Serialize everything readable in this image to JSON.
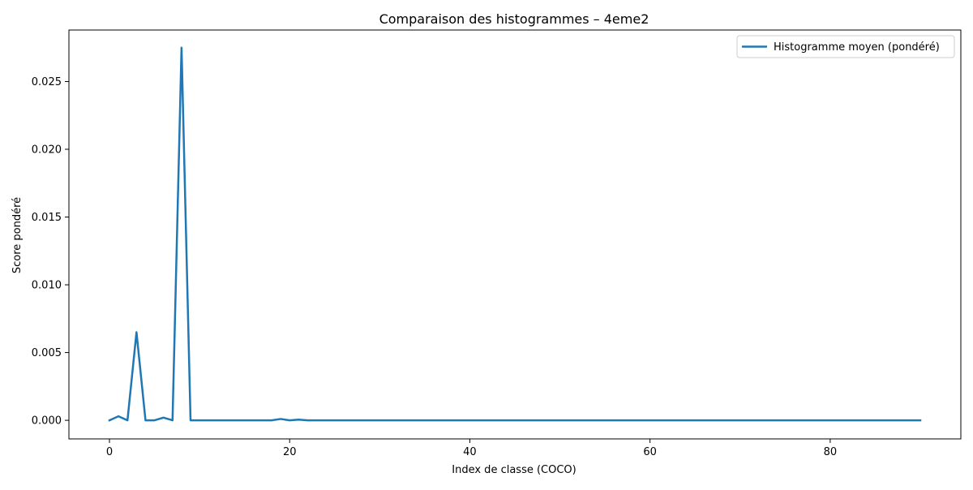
{
  "chart_data": {
    "type": "line",
    "title": "Comparaison des histogrammes – 4eme2",
    "xlabel": "Index de classe (COCO)",
    "ylabel": "Score pondéré",
    "xlim": [
      -4.5,
      94.5
    ],
    "ylim": [
      -0.00137,
      0.0288
    ],
    "xticks": [
      0,
      20,
      40,
      60,
      80
    ],
    "xtick_labels": [
      "0",
      "20",
      "40",
      "60",
      "80"
    ],
    "yticks": [
      0.0,
      0.005,
      0.01,
      0.015,
      0.02,
      0.025
    ],
    "ytick_labels": [
      "0.000",
      "0.005",
      "0.010",
      "0.015",
      "0.020",
      "0.025"
    ],
    "grid": false,
    "legend_position": "top-right",
    "series": [
      {
        "name": "Histogramme moyen (pondéré)",
        "color": "#1f77b4",
        "x": [
          0,
          1,
          2,
          3,
          4,
          5,
          6,
          7,
          8,
          9,
          10,
          11,
          12,
          13,
          14,
          15,
          16,
          17,
          18,
          19,
          20,
          21,
          22,
          23,
          24,
          25,
          26,
          27,
          28,
          29,
          30,
          31,
          32,
          33,
          34,
          35,
          36,
          37,
          38,
          39,
          40,
          41,
          42,
          43,
          44,
          45,
          46,
          47,
          48,
          49,
          50,
          51,
          52,
          53,
          54,
          55,
          56,
          57,
          58,
          59,
          60,
          61,
          62,
          63,
          64,
          65,
          66,
          67,
          68,
          69,
          70,
          71,
          72,
          73,
          74,
          75,
          76,
          77,
          78,
          79,
          80,
          81,
          82,
          83,
          84,
          85,
          86,
          87,
          88,
          89,
          90
        ],
        "values": [
          0.0,
          0.0003,
          0.0,
          0.0065,
          0.0,
          0.0,
          0.0002,
          0.0,
          0.0275,
          0.0,
          0.0,
          0.0,
          0.0,
          0.0,
          0.0,
          0.0,
          0.0,
          0.0,
          0.0,
          0.0001,
          0.0,
          5e-05,
          0.0,
          0.0,
          0.0,
          0.0,
          0.0,
          0.0,
          0.0,
          0.0,
          0.0,
          0.0,
          0.0,
          0.0,
          0.0,
          0.0,
          0.0,
          0.0,
          0.0,
          0.0,
          0.0,
          0.0,
          0.0,
          0.0,
          0.0,
          0.0,
          0.0,
          0.0,
          0.0,
          0.0,
          0.0,
          0.0,
          0.0,
          0.0,
          0.0,
          0.0,
          0.0,
          0.0,
          0.0,
          0.0,
          0.0,
          0.0,
          0.0,
          0.0,
          0.0,
          0.0,
          0.0,
          0.0,
          0.0,
          0.0,
          0.0,
          0.0,
          0.0,
          0.0,
          0.0,
          0.0,
          0.0,
          0.0,
          0.0,
          0.0,
          0.0,
          0.0,
          0.0,
          0.0,
          0.0,
          0.0,
          0.0,
          0.0,
          0.0,
          0.0,
          0.0
        ]
      }
    ]
  }
}
